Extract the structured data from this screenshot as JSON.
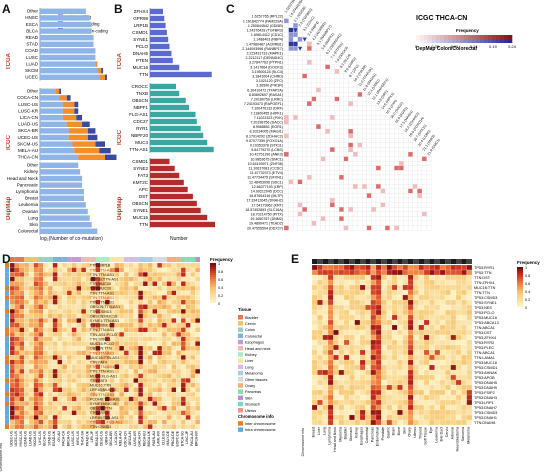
{
  "panels": {
    "A": "A",
    "B": "B",
    "C": "C",
    "D": "D",
    "E": "E"
  },
  "panelA": {
    "groups": [
      "TCGA",
      "ICGC",
      "DepMap"
    ],
    "legend": [
      "coding-coding",
      "coding-non-coding",
      "non-coding-non-coding"
    ],
    "xlabel": "log₂(Number of co-mutation)",
    "colors": {
      "cc": "#8fb4e8",
      "cn": "#f28e2b",
      "nn": "#3b4aa0",
      "other": "#9aa3c8"
    },
    "chart_data": [
      {
        "type": "bar",
        "stacked": true,
        "group": "TCGA",
        "categories": [
          "Other",
          "HNSC",
          "ESCA",
          "BLCA",
          "READ",
          "STAD",
          "COAD",
          "LUSC",
          "LUAD",
          "SKCM",
          "UCEC"
        ],
        "series": [
          {
            "name": "coding-coding",
            "values": [
              24,
              26,
              27,
              27,
              28,
              28,
              29,
              29,
              29,
              30,
              31
            ]
          },
          {
            "name": "coding-non-coding",
            "values": [
              0,
              0,
              0,
              0,
              0,
              0,
              0,
              0,
              1,
              2,
              3
            ]
          },
          {
            "name": "non-coding-non-coding",
            "values": [
              0,
              0,
              0,
              0,
              0,
              0,
              0,
              0,
              0,
              1,
              1
            ]
          }
        ]
      },
      {
        "type": "bar",
        "stacked": true,
        "group": "ICGC",
        "categories": [
          "Other",
          "COCA-CN",
          "LUSC-US",
          "LUSC-KR",
          "LICA-CN",
          "LUAD-US",
          "SKCA-BR",
          "UCEC-US",
          "SKCM-US",
          "MELA-AU",
          "THCA-CN"
        ],
        "series": [
          {
            "name": "coding-coding",
            "values": [
              8,
              10,
              12,
              12,
              12,
              14,
              15,
              15,
              17,
              18,
              20
            ]
          },
          {
            "name": "coding-non-coding",
            "values": [
              2,
              4,
              6,
              6,
              7,
              8,
              10,
              10,
              12,
              13,
              14
            ]
          },
          {
            "name": "non-coding-non-coding",
            "values": [
              1,
              2,
              2,
              2,
              3,
              4,
              4,
              5,
              5,
              6,
              6
            ]
          }
        ]
      },
      {
        "type": "bar",
        "stacked": true,
        "group": "DepMap",
        "categories": [
          "Other",
          "Kidney",
          "Head and Neck",
          "Pancreatic",
          "Lymphoma",
          "Breast",
          "Leukemia",
          "Ovarian",
          "Lung",
          "Skin",
          "Colorectal"
        ],
        "series": [
          {
            "name": "coding-coding",
            "values": [
              20,
              21,
              22,
              22,
              23,
              23,
              24,
              25,
              26,
              27,
              30
            ]
          },
          {
            "name": "coding-non-coding",
            "values": [
              0,
              0,
              0,
              0,
              0,
              0,
              0,
              0,
              0,
              0,
              0
            ]
          },
          {
            "name": "non-coding-non-coding",
            "values": [
              0,
              0,
              0,
              0,
              0,
              0,
              0,
              0,
              0,
              0,
              0
            ]
          }
        ]
      }
    ]
  },
  "panelB": {
    "groups": [
      "TCGA",
      "ICGC",
      "DepMap"
    ],
    "xlabel": "Number",
    "chart_data": [
      {
        "type": "bar",
        "group": "TCGA",
        "color": "#5b6ad0",
        "categories": [
          "ZFHX4",
          "GPR98",
          "LRP1B",
          "CSMD1",
          "SYNE1",
          "PCLO",
          "DNAH5",
          "PTEN",
          "MUC16",
          "TTN"
        ],
        "values": [
          20,
          22,
          24,
          26,
          28,
          30,
          33,
          35,
          45,
          95
        ]
      },
      {
        "type": "bar",
        "group": "ICGC",
        "color": "#3aa6a0",
        "categories": [
          "CROCC",
          "TNXB",
          "OBSCN",
          "NBPF1",
          "FLG-AS1",
          "CDC27",
          "RYR1",
          "NBPF20",
          "MUC4",
          "TTN-AS1"
        ],
        "values": [
          40,
          45,
          55,
          60,
          70,
          72,
          78,
          82,
          88,
          98
        ]
      },
      {
        "type": "bar",
        "group": "DepMap",
        "color": "#b52a2a",
        "categories": [
          "CSMD1",
          "SYNE2",
          "FAT3",
          "KMT2C",
          "APC",
          "DST",
          "OBSCN",
          "SYNE1",
          "MUC16",
          "TTN"
        ],
        "values": [
          30,
          38,
          45,
          52,
          58,
          66,
          72,
          78,
          88,
          100
        ]
      }
    ]
  },
  "panelC": {
    "title": "ICGC THCA-CN",
    "subtitle": "DepMap Colon/Colorectal",
    "legend_title": "Frequency",
    "legend_ticks": [
      "0",
      "0.05",
      "0.09",
      "0.14",
      "0.19",
      "0.24"
    ],
    "row_labels": [
      "1.6257765 (RPL22)",
      "1.161642774 (FAM229A)",
      "1.250844542 (GDI5B)",
      "1.24376428 (TGFBR3)",
      "1.69814412 (CD1C)",
      "1.1488403 (RBP4)",
      "1.47980487 (ACRRB1)",
      "2.144093996 (RANBP17)",
      "2.223431733 (MAPK1)",
      "2.2212117 (DENND4C)",
      "3.27847763 (PTPN1)",
      "3.1417664 (DOCK3)",
      "3.19500124 (SLC4)",
      "3.1841004 (CHRD)",
      "3.1021120 (ZFC)",
      "3.36590 (PIK3R)",
      "6.10410472 (TFAP2A)",
      "6.83892697 (RASA1)",
      "7.20180750 (LRRC)",
      "7.24193473 (RAPGEF1)",
      "7.100476132 (DRF)",
      "7.11800455 (HIPK1)",
      "7.11022323 (PXK)",
      "7.20198756 (DACC)",
      "8.9568651 (EGR1)",
      "8.10234005 (MAGI1)",
      "8.17014292 (ZDHHC2)",
      "9.57077359 (FOXO1A)",
      "9.10353378 (STK11)",
      "9.64779270 (LCBS)",
      "10.42751190 (ANK3)",
      "10.9853675 (DMC1)",
      "10.64193971 (ZNF36)",
      "11.10637083 (CCDC)",
      "11.67732373 (ETV4)",
      "11.47734475 (SFXN1)",
      "12.48453096 (SDC1)",
      "12.66377193 (LRP)",
      "14.99212045 (DCC)",
      "16.87654316 (MLTP)",
      "17.33412645 (DNAH2)",
      "17.54179962 (KRT)",
      "18.57452893 (SLC16A)",
      "18.70214750 (PITX)",
      "19.1650767 (DNM2)",
      "19.4890471 (TEAD2)",
      "20.47555504 (DDX27)"
    ],
    "col_labels": [
      "1.5253766 (RPL22)",
      "1.6 (FAM229A)",
      "2.1 (GDI5B)",
      "2.3 (TGFBR3)",
      "3.1 (CD1C)",
      "3.4 (RBP4)",
      "4.2 (ACRRB1)",
      "5.1 (RANBP17)",
      "5.6 (MAPK1)",
      "6.2 (DENND4C)",
      "7.1 (PTPN1)",
      "7.9 (DOCK3)",
      "8.3 (SLC4)",
      "9.0 (CHRD)",
      "9.7 (ZFC)",
      "10.2 (PIK3R)",
      "11.0 (TFAP2A)",
      "11.8 (RASA1)",
      "12.4 (LRRC)",
      "13.1 (RAPGEF1)",
      "13.9 (DRF)",
      "14.6 (HIPK1)",
      "15.3 (PXK)",
      "16.0 (DACC)",
      "16.8 (EGR1)",
      "17.5 (MAGI1)",
      "18.2 (ZDHHC2)",
      "19.0 (FOXO1A)",
      "19.7 (STK11)",
      "20.4 (LCBS)",
      "21.1 (ANK3)",
      "21.9 (DMC1)"
    ],
    "chart_data": {
      "type": "heatmap",
      "note_colors": [
        "#ffffff",
        "#f6c9c9",
        "#e06a6a",
        "#b22222"
      ]
    }
  },
  "panelD": {
    "legend_title": "Frequency",
    "legend_ticks": [
      "1",
      "0.8",
      "0.6",
      "0.4",
      "0.2",
      "0"
    ],
    "tissue_title": "Tissue",
    "tissues": [
      {
        "name": "Bladder",
        "color": "#e07b53"
      },
      {
        "name": "Cervix",
        "color": "#e9c46a"
      },
      {
        "name": "Colon",
        "color": "#9ad0c2"
      },
      {
        "name": "Colorectal",
        "color": "#7fb3d5"
      },
      {
        "name": "Esophagus",
        "color": "#c39bd3"
      },
      {
        "name": "Head and neck",
        "color": "#f5b7b1"
      },
      {
        "name": "Kidney",
        "color": "#abebc6"
      },
      {
        "name": "Liver",
        "color": "#f9e79f"
      },
      {
        "name": "Lung",
        "color": "#d7bde2"
      },
      {
        "name": "Melanoma",
        "color": "#a9cce3"
      },
      {
        "name": "Other tissues",
        "color": "#d5dbdb"
      },
      {
        "name": "Ovary",
        "color": "#f0b27a"
      },
      {
        "name": "Pancreas",
        "color": "#82e0aa"
      },
      {
        "name": "Skin",
        "color": "#bb8fce"
      },
      {
        "name": "Stomach",
        "color": "#76d7c4"
      },
      {
        "name": "Uterus",
        "color": "#f1948a"
      }
    ],
    "chrom_title": "Chromosome info",
    "chrom": [
      {
        "name": "Inter chromosome",
        "color": "#e67e22"
      },
      {
        "name": "Intra chromosome",
        "color": "#5dade2"
      }
    ],
    "row_labels": [
      "TTN:LRP1B",
      "TTN:TTN-AS1",
      "TTN:TTN-AS1",
      "LRP1B:TTN-AS1",
      "TTN:MUC16",
      "TTN:MUC16",
      "TTN:TTN-AS1",
      "TTN:TTN-AS1",
      "TTN:TTN-AS1",
      "OBSCN:TTN-AS1",
      "TTN:CSMD3",
      "OBSCN:MUC16",
      "SYNE1:TTN-AS1",
      "TTN:SYNE1",
      "TTN:TTN-AS1",
      "TTN-AS1:PCLO",
      "TTN:SYNE1",
      "MUC16:PCLO",
      "OBSCN:TTN",
      "TTN:TTN-AS1",
      "MUC16:TTN-AS1",
      "TTN:FAT4",
      "TTN:TTN-AS1",
      "TTN:TTN-AS1",
      "MUC4:FLG-AS1",
      "TTN:FAT3",
      "MUC16:TTN",
      "LRP1B:MUC16",
      "TTN:TTN-AS1",
      "PCDHB:TTN-AS1",
      "SYNE1:MUC16",
      "OBSCN:TTN",
      "TTN:RYR2",
      "LRP1B:TTN-AS1",
      "TTN-AS1:FLG-AS1",
      "TTN:CSMD1"
    ],
    "col_labels": [
      "UCEC-US",
      "UCEC-US",
      "HNSC-US",
      "COAD-US",
      "LUAD-US",
      "SKCM-US",
      "LIHC-US",
      "BLCA-US",
      "STAD-US",
      "ESAD-UK",
      "OV-AU",
      "PACA-CA",
      "BRCA-US",
      "LUSC-US",
      "KIRC-US",
      "THCA-SA",
      "PRAD-UK",
      "LIRI-JP",
      "READ-US",
      "CESC-US",
      "GBM-US",
      "SKCA-BR",
      "LICA-CN",
      "MELA-AU",
      "COCA-CN",
      "ORCA-IN",
      "LUSC-KR",
      "GACA-CN",
      "RECA-EU",
      "BOCA-UK",
      "PAEN-AU",
      "LAML-KR",
      "CLLE-ES",
      "MALY-DE",
      "PBCA-DE",
      "EOPC-DE",
      "BTCA-SG",
      "LINC-JP",
      "PACA-AU",
      "BRCA-KR"
    ],
    "xlabel": "Chromosome info"
  },
  "panelE": {
    "legend_title": "Frequency",
    "legend_ticks": [
      "1",
      "0.8",
      "0.6",
      "0.4",
      "0.2",
      "0"
    ],
    "row_labels": [
      "TP53:RYR1",
      "TP53:TTN",
      "TTN:DST",
      "TTN:ZFHX4",
      "MUC16:TTN",
      "TTN:TTN",
      "TP53:CSMD3",
      "TP53:SYNE1",
      "TP53:NES",
      "TP53:PCLO",
      "TP53:MUC16",
      "TP53:ABCA13",
      "TTN:ABCA1",
      "TP53:DST",
      "TP53:ZFHX4",
      "TP53:RYR2",
      "TP53:PLEC",
      "TTN:ABCA1",
      "TTN:LAMA1",
      "TP53:MUC16",
      "TP53:CSMD1",
      "TP53:AHNAK",
      "TP53:APOB",
      "TP53:DNAH5",
      "TP53:DNAH9",
      "TP53:FSIP2",
      "TP53:DNAH3",
      "TP53:LRP1",
      "TP53:DNAH7",
      "TP53:CSMD3",
      "TP53:DNAH1",
      "TTN:DNAH8"
    ],
    "col_labels": [
      "Breast",
      "Liver",
      "Lung",
      "Lymphoma",
      "Head and Neck",
      "Myeloma",
      "Bladder",
      "Stomach",
      "Kidney",
      "Esophagus",
      "Colorectal",
      "Pancreas",
      "Endometrial",
      "Prostate",
      "Gastric",
      "Brain",
      "Bone",
      "Skin",
      "Ovary",
      "Uterus",
      "Thyroid",
      "Soft Tissue",
      "Eye",
      "Leukemia",
      "Bile Duct",
      "Cervix",
      "Adrenal",
      "Neuroblastoma",
      "Sarcoma",
      "Melanoma"
    ],
    "xlabel": "Chromosome info"
  }
}
